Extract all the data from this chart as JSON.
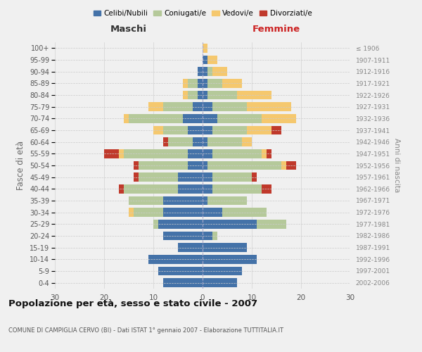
{
  "age_groups": [
    "0-4",
    "5-9",
    "10-14",
    "15-19",
    "20-24",
    "25-29",
    "30-34",
    "35-39",
    "40-44",
    "45-49",
    "50-54",
    "55-59",
    "60-64",
    "65-69",
    "70-74",
    "75-79",
    "80-84",
    "85-89",
    "90-94",
    "95-99",
    "100+"
  ],
  "birth_years": [
    "2002-2006",
    "1997-2001",
    "1992-1996",
    "1987-1991",
    "1982-1986",
    "1977-1981",
    "1972-1976",
    "1967-1971",
    "1962-1966",
    "1957-1961",
    "1952-1956",
    "1947-1951",
    "1942-1946",
    "1937-1941",
    "1932-1936",
    "1927-1931",
    "1922-1926",
    "1917-1921",
    "1912-1916",
    "1907-1911",
    "≤ 1906"
  ],
  "males": {
    "celibe": [
      8,
      9,
      11,
      5,
      8,
      9,
      8,
      8,
      5,
      5,
      3,
      3,
      2,
      3,
      4,
      2,
      1,
      1,
      1,
      0,
      0
    ],
    "coniugato": [
      0,
      0,
      0,
      0,
      0,
      1,
      6,
      7,
      11,
      8,
      10,
      13,
      5,
      5,
      11,
      6,
      2,
      2,
      0,
      0,
      0
    ],
    "vedovo": [
      0,
      0,
      0,
      0,
      0,
      0,
      1,
      0,
      0,
      0,
      0,
      1,
      0,
      2,
      1,
      3,
      1,
      1,
      0,
      0,
      0
    ],
    "divorziato": [
      0,
      0,
      0,
      0,
      0,
      0,
      0,
      0,
      1,
      1,
      1,
      3,
      1,
      0,
      0,
      0,
      0,
      0,
      0,
      0,
      0
    ]
  },
  "females": {
    "nubile": [
      7,
      8,
      11,
      9,
      2,
      11,
      4,
      1,
      2,
      2,
      1,
      2,
      1,
      2,
      3,
      2,
      1,
      1,
      1,
      1,
      0
    ],
    "coniugata": [
      0,
      0,
      0,
      0,
      1,
      6,
      9,
      8,
      10,
      8,
      15,
      10,
      7,
      7,
      9,
      7,
      6,
      3,
      1,
      0,
      0
    ],
    "vedova": [
      0,
      0,
      0,
      0,
      0,
      0,
      0,
      0,
      0,
      0,
      1,
      1,
      2,
      5,
      7,
      9,
      7,
      4,
      3,
      2,
      1
    ],
    "divorziata": [
      0,
      0,
      0,
      0,
      0,
      0,
      0,
      0,
      2,
      1,
      2,
      1,
      0,
      2,
      0,
      0,
      0,
      0,
      0,
      0,
      0
    ]
  },
  "colors": {
    "celibe": "#4472a8",
    "coniugato": "#b5c99a",
    "vedovo": "#f5c86e",
    "divorziato": "#c0392b"
  },
  "xlim": 30,
  "title": "Popolazione per età, sesso e stato civile - 2007",
  "subtitle": "COMUNE DI CAMPIGLIA CERVO (BI) - Dati ISTAT 1° gennaio 2007 - Elaborazione TUTTITALIA.IT",
  "ylabel_left": "Fasce di età",
  "ylabel_right": "Anni di nascita",
  "xlabel_left": "Maschi",
  "xlabel_right": "Femmine",
  "legend_labels": [
    "Celibi/Nubili",
    "Coniugati/e",
    "Vedovi/e",
    "Divorziati/e"
  ],
  "bg_color": "#f0f0f0",
  "grid_color": "#cccccc"
}
